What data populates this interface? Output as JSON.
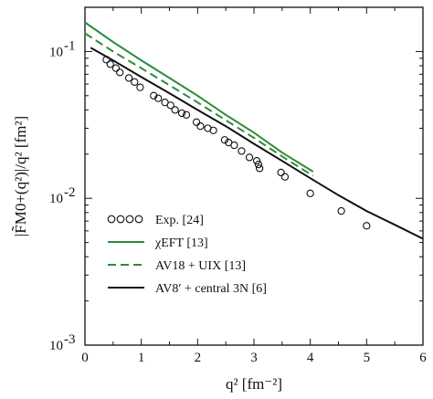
{
  "chart_data": {
    "type": "line",
    "xlabel": "q² [fm⁻²]",
    "ylabel": "|F̃M0+(q²)|/q² [fm²]",
    "x_axis": {
      "range": [
        0,
        6
      ],
      "ticks": [
        0,
        1,
        2,
        3,
        4,
        5,
        6
      ],
      "tick_labels": [
        "0",
        "1",
        "2",
        "3",
        "4",
        "5",
        "6"
      ]
    },
    "y_axis": {
      "scale": "log",
      "range": [
        0.001,
        0.2
      ],
      "ticks": [
        0.001,
        0.01,
        0.1
      ],
      "tick_base": "10",
      "tick_exponents": [
        "-3",
        "-2",
        "-1"
      ]
    },
    "grid": false,
    "legend": {
      "placement": "bottom-left",
      "entries": [
        {
          "series": "exp",
          "label": "Exp. [24]"
        },
        {
          "series": "chieft",
          "label": "χEFT [13]"
        },
        {
          "series": "av18",
          "label": "AV18 + UIX [13]"
        },
        {
          "series": "av8",
          "label": "AV8′ + central 3N [6]"
        }
      ]
    },
    "series": [
      {
        "id": "exp",
        "name": "Exp. [24]",
        "style": "open-circle",
        "color": "#111111",
        "points": [
          [
            0.38,
            0.088
          ],
          [
            0.45,
            0.082
          ],
          [
            0.55,
            0.077
          ],
          [
            0.62,
            0.072
          ],
          [
            0.78,
            0.066
          ],
          [
            0.88,
            0.062
          ],
          [
            0.98,
            0.057
          ],
          [
            1.22,
            0.05
          ],
          [
            1.3,
            0.048
          ],
          [
            1.42,
            0.045
          ],
          [
            1.52,
            0.043
          ],
          [
            1.6,
            0.04
          ],
          [
            1.72,
            0.038
          ],
          [
            1.8,
            0.037
          ],
          [
            1.98,
            0.033
          ],
          [
            2.05,
            0.031
          ],
          [
            2.18,
            0.03
          ],
          [
            2.28,
            0.029
          ],
          [
            2.48,
            0.025
          ],
          [
            2.55,
            0.024
          ],
          [
            2.65,
            0.023
          ],
          [
            2.78,
            0.021
          ],
          [
            2.92,
            0.019
          ],
          [
            3.05,
            0.018
          ],
          [
            3.08,
            0.017
          ],
          [
            3.1,
            0.016
          ],
          [
            3.48,
            0.015
          ],
          [
            3.55,
            0.014
          ],
          [
            4.0,
            0.0108
          ],
          [
            4.55,
            0.0082
          ],
          [
            5.0,
            0.0065
          ]
        ]
      },
      {
        "id": "chieft",
        "name": "χEFT [13]",
        "style": "solid",
        "color": "#2e8b3a",
        "points": [
          [
            0.0,
            0.158
          ],
          [
            0.5,
            0.116
          ],
          [
            1.0,
            0.087
          ],
          [
            1.5,
            0.066
          ],
          [
            2.0,
            0.05
          ],
          [
            2.5,
            0.037
          ],
          [
            3.0,
            0.028
          ],
          [
            3.5,
            0.0205
          ],
          [
            4.05,
            0.0152
          ]
        ]
      },
      {
        "id": "av18",
        "name": "AV18 + UIX [13]",
        "style": "dashed",
        "color": "#2e8b3a",
        "points": [
          [
            0.0,
            0.133
          ],
          [
            0.5,
            0.1
          ],
          [
            1.0,
            0.077
          ],
          [
            1.5,
            0.059
          ],
          [
            2.0,
            0.045
          ],
          [
            2.5,
            0.034
          ],
          [
            3.0,
            0.0258
          ],
          [
            3.5,
            0.0193
          ],
          [
            4.05,
            0.0142
          ]
        ]
      },
      {
        "id": "av8",
        "name": "AV8′ + central 3N [6]",
        "style": "solid",
        "color": "#111111",
        "points": [
          [
            0.1,
            0.106
          ],
          [
            0.5,
            0.087
          ],
          [
            1.0,
            0.067
          ],
          [
            1.5,
            0.052
          ],
          [
            2.0,
            0.04
          ],
          [
            2.5,
            0.031
          ],
          [
            3.0,
            0.0235
          ],
          [
            3.5,
            0.018
          ],
          [
            4.0,
            0.0137
          ],
          [
            4.5,
            0.0105
          ],
          [
            5.0,
            0.0082
          ],
          [
            5.5,
            0.0066
          ],
          [
            6.0,
            0.0053
          ]
        ]
      }
    ]
  }
}
